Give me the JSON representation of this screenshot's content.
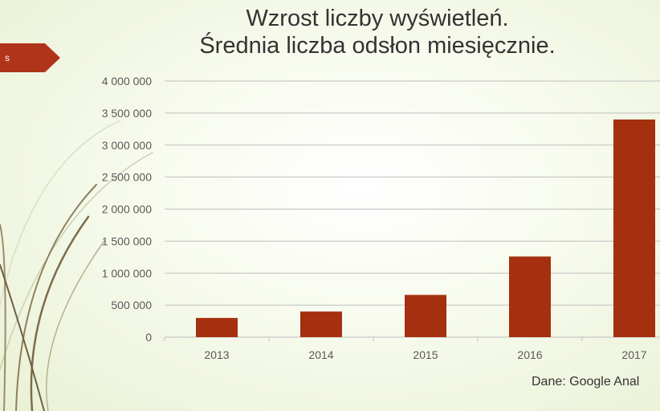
{
  "slide": {
    "title_line1": "Wzrost liczby wyświetleń.",
    "title_line2": "Średnia liczba odsłon miesięcznie.",
    "source": "Dane: Google Anal"
  },
  "colors": {
    "bar": "#a5300f",
    "gridline": "#bfbfbf",
    "text": "#595959",
    "arrow": "#b0341a",
    "stem": "#8a7a5a"
  },
  "chart_data": {
    "type": "bar",
    "title": "",
    "xlabel": "",
    "ylabel": "",
    "categories": [
      "2013",
      "2014",
      "2015",
      "2016",
      "2017"
    ],
    "series": [
      {
        "values": [
          300000,
          400000,
          660000,
          1260000,
          3400000
        ]
      }
    ],
    "ylim": [
      0,
      4000000
    ],
    "yticks": [
      0,
      500000,
      1000000,
      1500000,
      2000000,
      2500000,
      3000000,
      3500000,
      4000000
    ],
    "ytick_labels": [
      "0",
      "500 000",
      "1 000 000",
      "1 500 000",
      "2 000 000",
      "2 500 000",
      "3 000 000",
      "3 500 000",
      "4 000 000"
    ],
    "grid": true,
    "legend": "none"
  }
}
